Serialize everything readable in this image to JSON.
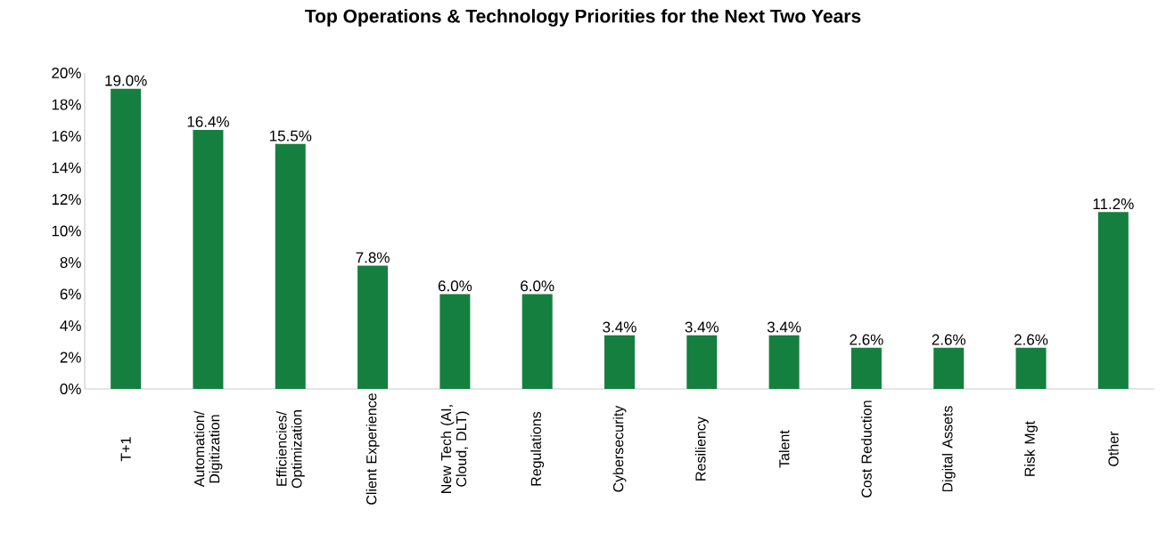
{
  "chart_data": {
    "type": "bar",
    "title": "Top Operations & Technology Priorities for the Next Two Years",
    "categories": [
      "T+1",
      "Automation/ Digitization",
      "Efficiencies/ Optimization",
      "Client Experience",
      "New Tech (AI, Cloud, DLT)",
      "Regulations",
      "Cybersecurity",
      "Resiliency",
      "Talent",
      "Cost Reduction",
      "Digital Assets",
      "Risk Mgt",
      "Other"
    ],
    "values": [
      19.0,
      16.4,
      15.5,
      7.8,
      6.0,
      6.0,
      3.4,
      3.4,
      3.4,
      2.6,
      2.6,
      2.6,
      11.2
    ],
    "value_labels": [
      "19.0%",
      "16.4%",
      "15.5%",
      "7.8%",
      "6.0%",
      "6.0%",
      "3.4%",
      "3.4%",
      "3.4%",
      "2.6%",
      "2.6%",
      "2.6%",
      "11.2%"
    ],
    "color": "#157f3f",
    "ylim": [
      0,
      20
    ],
    "yticks": [
      {
        "value": 0,
        "label": "0%"
      },
      {
        "value": 2,
        "label": "2%"
      },
      {
        "value": 4,
        "label": "4%"
      },
      {
        "value": 6,
        "label": "6%"
      },
      {
        "value": 8,
        "label": "8%"
      },
      {
        "value": 10,
        "label": "10%"
      },
      {
        "value": 12,
        "label": "12%"
      },
      {
        "value": 14,
        "label": "14%"
      },
      {
        "value": 16,
        "label": "16%"
      },
      {
        "value": 18,
        "label": "18%"
      },
      {
        "value": 20,
        "label": "20%"
      }
    ],
    "grid": false
  }
}
